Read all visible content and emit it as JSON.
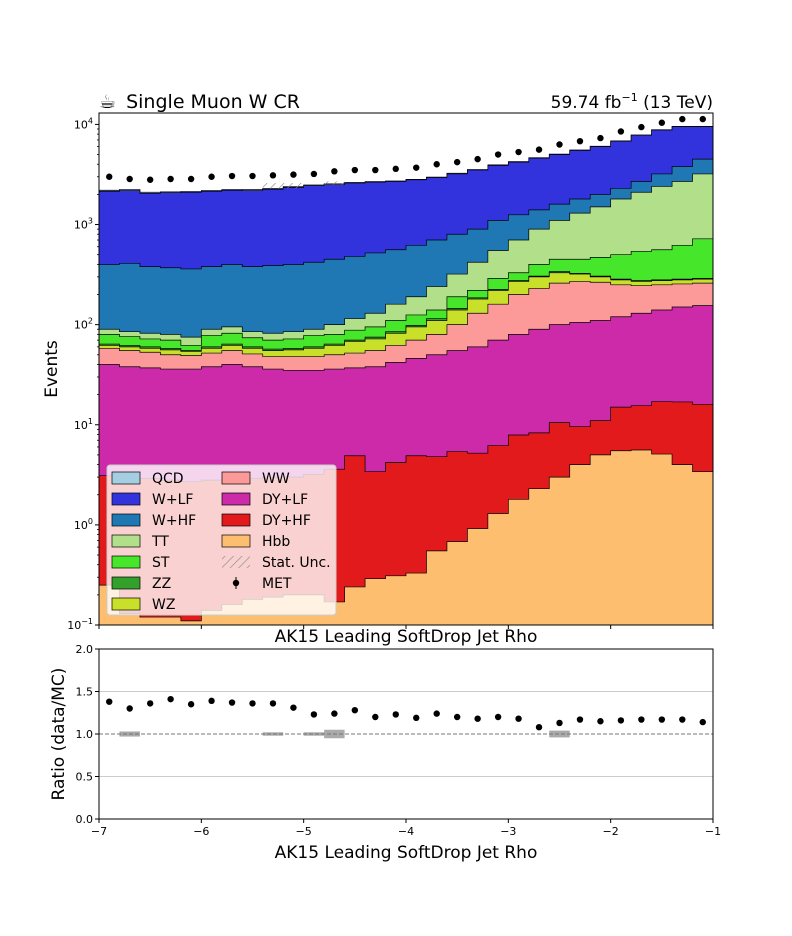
{
  "header": {
    "icon": "coffee-cup-icon",
    "icon_glyph": "☕",
    "title": "Single Muon W CR",
    "lumi_main": "59.74 fb",
    "lumi_sup": "−1",
    "lumi_tail": " (13 TeV)"
  },
  "chart_data": [
    {
      "type": "area",
      "subtype": "stacked-step-histogram",
      "ylabel": "Events",
      "xlabel": "AK15 Leading SoftDrop Jet Rho",
      "yscale": "log",
      "xlim": [
        -7,
        -1
      ],
      "ylim": [
        0.1,
        13000
      ],
      "y_tick_labels": [
        {
          "base": "10",
          "exp": "−1",
          "value": 0.1
        },
        {
          "base": "10",
          "exp": "0",
          "value": 1
        },
        {
          "base": "10",
          "exp": "1",
          "value": 10
        },
        {
          "base": "10",
          "exp": "2",
          "value": 100
        },
        {
          "base": "10",
          "exp": "3",
          "value": 1000
        },
        {
          "base": "10",
          "exp": "4",
          "value": 10000
        }
      ],
      "x_bin_edges": [
        -7.0,
        -6.8,
        -6.6,
        -6.4,
        -6.2,
        -6.0,
        -5.8,
        -5.6,
        -5.4,
        -5.2,
        -5.0,
        -4.8,
        -4.6,
        -4.4,
        -4.2,
        -4.0,
        -3.8,
        -3.6,
        -3.4,
        -3.2,
        -3.0,
        -2.8,
        -2.6,
        -2.4,
        -2.2,
        -2.0,
        -1.8,
        -1.6,
        -1.4,
        -1.2,
        -1.0
      ],
      "stack_colors": {
        "Hbb": "#fdbf6f",
        "DY+HF": "#e31a1c",
        "DY+LF": "#cc2aa8",
        "WW": "#fb9a99",
        "WZ": "#c8e02a",
        "ZZ": "#33a02c",
        "ST": "#46e62a",
        "TT": "#b2df8a",
        "W+HF": "#1f78b4",
        "W+LF": "#3333dd",
        "QCD": "#a6cee3"
      },
      "cumulative_stack": [
        {
          "name": "Hbb",
          "values": [
            0.25,
            0.13,
            0.12,
            0.12,
            0.11,
            0.14,
            0.16,
            0.18,
            0.19,
            0.2,
            0.2,
            0.17,
            0.24,
            0.29,
            0.31,
            0.33,
            0.55,
            0.68,
            0.92,
            1.3,
            1.8,
            2.3,
            3,
            4,
            5,
            5.5,
            5.6,
            5.1,
            4,
            3.4
          ]
        },
        {
          "name": "DY+HF",
          "values": [
            3.1,
            3,
            2.9,
            2.8,
            2.7,
            2.8,
            2.9,
            2.9,
            3,
            3,
            3.2,
            3.6,
            4.9,
            3.4,
            4.2,
            4.9,
            4.8,
            5.4,
            5.2,
            6.2,
            7.9,
            8.3,
            10.5,
            9.6,
            11,
            15,
            15.5,
            17,
            16.9,
            16
          ]
        },
        {
          "name": "DY+LF",
          "values": [
            40,
            38,
            37,
            36,
            36,
            38,
            40,
            38,
            36,
            35,
            35,
            36,
            37,
            38,
            42,
            46,
            50,
            55,
            60,
            70,
            80,
            90,
            100,
            105,
            110,
            120,
            130,
            140,
            150,
            155
          ]
        },
        {
          "name": "WW",
          "values": [
            58,
            55,
            53,
            50,
            49,
            52,
            55,
            51,
            48,
            48,
            48,
            50,
            52,
            55,
            62,
            70,
            80,
            100,
            130,
            160,
            200,
            230,
            260,
            270,
            265,
            250,
            245,
            250,
            255,
            260
          ]
        },
        {
          "name": "WZ",
          "values": [
            62,
            60,
            58,
            56,
            54,
            58,
            62,
            58,
            55,
            56,
            58,
            62,
            68,
            72,
            82,
            95,
            110,
            140,
            180,
            220,
            270,
            300,
            330,
            320,
            300,
            280,
            270,
            275,
            280,
            285
          ]
        },
        {
          "name": "ZZ",
          "values": [
            64,
            62,
            60,
            58,
            55,
            60,
            64,
            60,
            57,
            58,
            60,
            64,
            70,
            75,
            85,
            98,
            115,
            145,
            185,
            225,
            275,
            305,
            340,
            325,
            305,
            285,
            275,
            280,
            285,
            290
          ]
        },
        {
          "name": "ST",
          "values": [
            80,
            76,
            72,
            70,
            62,
            78,
            82,
            74,
            70,
            72,
            78,
            80,
            88,
            95,
            110,
            125,
            140,
            190,
            220,
            290,
            330,
            400,
            450,
            450,
            470,
            500,
            540,
            560,
            620,
            720
          ]
        },
        {
          "name": "TT",
          "values": [
            90,
            85,
            82,
            80,
            75,
            90,
            95,
            85,
            82,
            85,
            90,
            100,
            115,
            130,
            160,
            190,
            240,
            320,
            420,
            550,
            700,
            900,
            1100,
            1300,
            1500,
            1800,
            2100,
            2400,
            2700,
            3200
          ]
        },
        {
          "name": "W+HF",
          "values": [
            400,
            410,
            380,
            370,
            360,
            380,
            400,
            380,
            390,
            400,
            420,
            450,
            480,
            520,
            560,
            620,
            700,
            800,
            900,
            1100,
            1250,
            1400,
            1600,
            1800,
            2000,
            2300,
            2700,
            3200,
            3800,
            4500
          ]
        },
        {
          "name": "W+LF",
          "values": [
            2150,
            2180,
            2050,
            2080,
            2100,
            2150,
            2200,
            2180,
            2250,
            2350,
            2450,
            2500,
            2600,
            2650,
            2700,
            2800,
            2950,
            3200,
            3500,
            3900,
            4200,
            4600,
            5000,
            5500,
            6000,
            6800,
            7800,
            8800,
            9500,
            9500
          ]
        },
        {
          "name": "QCD",
          "values": [
            2200,
            2240,
            2100,
            2120,
            2140,
            2190,
            2240,
            2230,
            2300,
            2400,
            2480,
            2550,
            2630,
            2680,
            2720,
            2830,
            2980,
            3250,
            3550,
            3950,
            4250,
            4650,
            5050,
            5550,
            6050,
            6850,
            7850,
            8850,
            9550,
            9550
          ]
        }
      ],
      "data_series": {
        "name": "MET",
        "x": [
          -6.9,
          -6.7,
          -6.5,
          -6.3,
          -6.1,
          -5.9,
          -5.7,
          -5.5,
          -5.3,
          -5.1,
          -4.9,
          -4.7,
          -4.5,
          -4.3,
          -4.1,
          -3.9,
          -3.7,
          -3.5,
          -3.3,
          -3.1,
          -2.9,
          -2.7,
          -2.5,
          -2.3,
          -2.1,
          -1.9,
          -1.7,
          -1.5,
          -1.3,
          -1.1
        ],
        "values": [
          3000,
          2850,
          2800,
          2850,
          2850,
          3000,
          3050,
          3050,
          3100,
          3150,
          3200,
          3400,
          3500,
          3500,
          3600,
          3700,
          4000,
          4200,
          4500,
          5000,
          5300,
          5600,
          6300,
          6800,
          7300,
          8500,
          9400,
          10400,
          11300,
          11300
        ]
      },
      "stat_unc_hatch": [
        {
          "x_range": [
            -5.4,
            -5.0
          ],
          "y_range": [
            2300,
            2600
          ]
        },
        {
          "x_range": [
            -4.8,
            -4.6
          ],
          "y_range": [
            2500,
            2700
          ]
        }
      ],
      "legend": {
        "placement": "lower-left",
        "columns": [
          [
            "QCD",
            "W+LF",
            "W+HF",
            "TT",
            "ST",
            "ZZ",
            "WZ"
          ],
          [
            "WW",
            "DY+LF",
            "DY+HF",
            "Hbb",
            "Stat. Unc.",
            "MET"
          ]
        ]
      }
    },
    {
      "type": "scatter",
      "ylabel": "Ratio (data/MC)",
      "xlabel": "AK15 Leading SoftDrop Jet Rho",
      "xlim": [
        -7,
        -1
      ],
      "ylim": [
        0,
        2
      ],
      "x_ticks": [
        "−7",
        "−6",
        "−5",
        "−4",
        "−3",
        "−2",
        "−1"
      ],
      "x_tick_values": [
        -7,
        -6,
        -5,
        -4,
        -3,
        -2,
        -1
      ],
      "y_ticks": [
        "0.0",
        "0.5",
        "1.0",
        "1.5",
        "2.0"
      ],
      "y_tick_values": [
        0,
        0.5,
        1,
        1.5,
        2
      ],
      "grid": "horizontal",
      "reference_line": 1.0,
      "x": [
        -6.9,
        -6.7,
        -6.5,
        -6.3,
        -6.1,
        -5.9,
        -5.7,
        -5.5,
        -5.3,
        -5.1,
        -4.9,
        -4.7,
        -4.5,
        -4.3,
        -4.1,
        -3.9,
        -3.7,
        -3.5,
        -3.3,
        -3.1,
        -2.9,
        -2.7,
        -2.5,
        -2.3,
        -2.1,
        -1.9,
        -1.7,
        -1.5,
        -1.3,
        -1.1
      ],
      "values": [
        1.38,
        1.3,
        1.36,
        1.41,
        1.35,
        1.39,
        1.37,
        1.36,
        1.36,
        1.31,
        1.23,
        1.24,
        1.28,
        1.2,
        1.23,
        1.19,
        1.24,
        1.2,
        1.18,
        1.2,
        1.18,
        1.08,
        1.13,
        1.17,
        1.15,
        1.16,
        1.17,
        1.17,
        1.17,
        1.14
      ],
      "unc_band": [
        {
          "x_range": [
            -6.8,
            -6.6
          ],
          "half_width": 0.03
        },
        {
          "x_range": [
            -5.4,
            -5.2
          ],
          "half_width": 0.02
        },
        {
          "x_range": [
            -5.0,
            -4.8
          ],
          "half_width": 0.02
        },
        {
          "x_range": [
            -4.8,
            -4.6
          ],
          "half_width": 0.05
        },
        {
          "x_range": [
            -2.6,
            -2.4
          ],
          "half_width": 0.04
        }
      ]
    }
  ]
}
